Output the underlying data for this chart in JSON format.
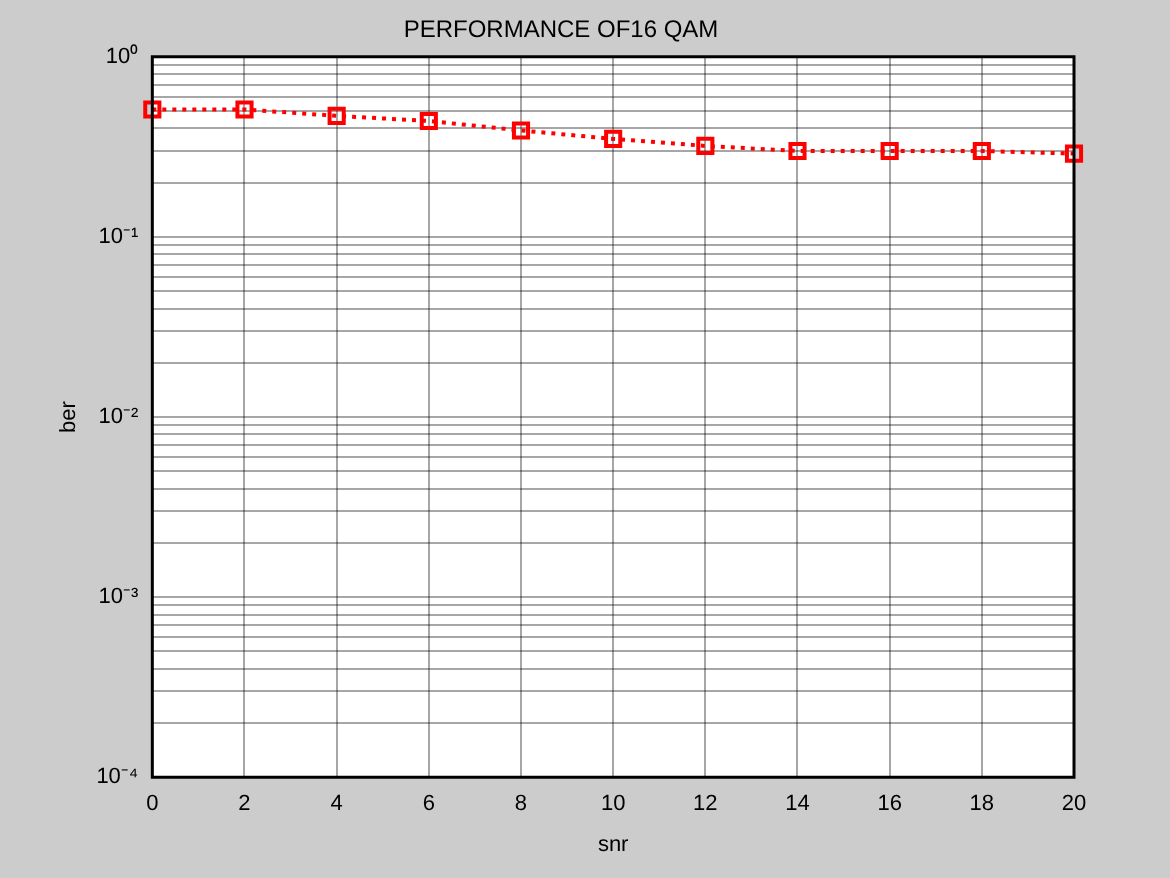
{
  "chart_data": {
    "type": "line",
    "title": "PERFORMANCE OF16 QAM",
    "xlabel": "snr",
    "ylabel": "ber",
    "x": [
      0,
      2,
      4,
      6,
      8,
      10,
      12,
      14,
      16,
      18,
      20
    ],
    "series": [
      {
        "color": "#ff0000",
        "values": [
          0.51,
          0.51,
          0.47,
          0.44,
          0.39,
          0.35,
          0.32,
          0.3,
          0.3,
          0.3,
          0.29
        ]
      }
    ],
    "xlim": [
      0,
      20
    ],
    "xticks": [
      0,
      2,
      4,
      6,
      8,
      10,
      12,
      14,
      16,
      18,
      20
    ],
    "log": "y",
    "ylim": [
      0.0001,
      1
    ],
    "yticks": [
      {
        "value": 0.0001,
        "label": "10⁻⁴"
      },
      {
        "value": 0.0002,
        "label": null
      },
      {
        "value": 0.0003,
        "label": null
      },
      {
        "value": 0.0004,
        "label": null
      },
      {
        "value": 0.0005,
        "label": null
      },
      {
        "value": 0.0006,
        "label": null
      },
      {
        "value": 0.0007,
        "label": null
      },
      {
        "value": 0.0008,
        "label": null
      },
      {
        "value": 0.0009,
        "label": null
      },
      {
        "value": 0.001,
        "label": "10⁻³"
      },
      {
        "value": 0.002,
        "label": null
      },
      {
        "value": 0.003,
        "label": null
      },
      {
        "value": 0.004,
        "label": null
      },
      {
        "value": 0.005,
        "label": null
      },
      {
        "value": 0.006,
        "label": null
      },
      {
        "value": 0.007,
        "label": null
      },
      {
        "value": 0.008,
        "label": null
      },
      {
        "value": 0.009,
        "label": null
      },
      {
        "value": 0.01,
        "label": "10⁻²"
      },
      {
        "value": 0.02,
        "label": null
      },
      {
        "value": 0.03,
        "label": null
      },
      {
        "value": 0.04,
        "label": null
      },
      {
        "value": 0.05,
        "label": null
      },
      {
        "value": 0.06,
        "label": null
      },
      {
        "value": 0.07,
        "label": null
      },
      {
        "value": 0.08,
        "label": null
      },
      {
        "value": 0.09,
        "label": null
      },
      {
        "value": 0.1,
        "label": "10⁻¹"
      },
      {
        "value": 0.2,
        "label": null
      },
      {
        "value": 0.3,
        "label": null
      },
      {
        "value": 0.4,
        "label": null
      },
      {
        "value": 0.5,
        "label": null
      },
      {
        "value": 0.6,
        "label": null
      },
      {
        "value": 0.7,
        "label": null
      },
      {
        "value": 0.8,
        "label": null
      },
      {
        "value": 0.9,
        "label": null
      },
      {
        "value": 1,
        "label": "10⁰"
      }
    ],
    "grid": true,
    "marker": "square",
    "line_style": "dotted",
    "legend": false
  }
}
